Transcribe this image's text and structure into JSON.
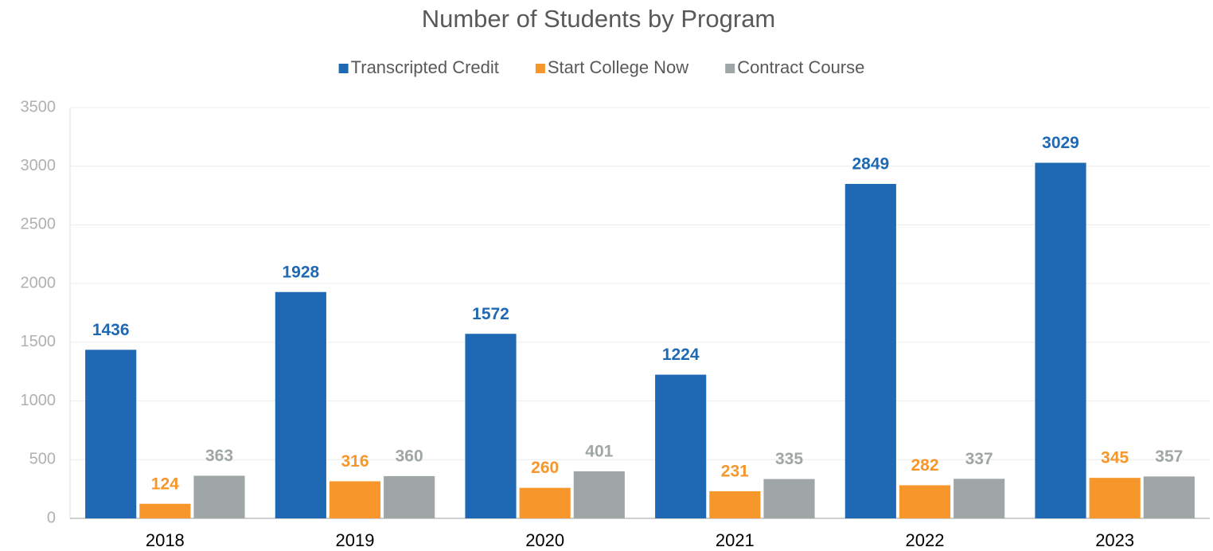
{
  "chart_data": {
    "type": "bar",
    "title": "Number of Students by Program",
    "categories": [
      "2018",
      "2019",
      "2020",
      "2021",
      "2022",
      "2023"
    ],
    "series": [
      {
        "name": "Transcripted Credit",
        "color": "#1f69b4",
        "values": [
          1436,
          1928,
          1572,
          1224,
          2849,
          3029
        ]
      },
      {
        "name": "Start College Now",
        "color": "#f7962b",
        "values": [
          124,
          316,
          260,
          231,
          282,
          345
        ]
      },
      {
        "name": "Contract Course",
        "color": "#a0a6a6",
        "values": [
          363,
          360,
          401,
          335,
          337,
          357
        ]
      }
    ],
    "ylim": [
      0,
      3500
    ],
    "yticks": [
      0,
      500,
      1000,
      1500,
      2000,
      2500,
      3000,
      3500
    ],
    "grid": true,
    "legend": "top"
  }
}
